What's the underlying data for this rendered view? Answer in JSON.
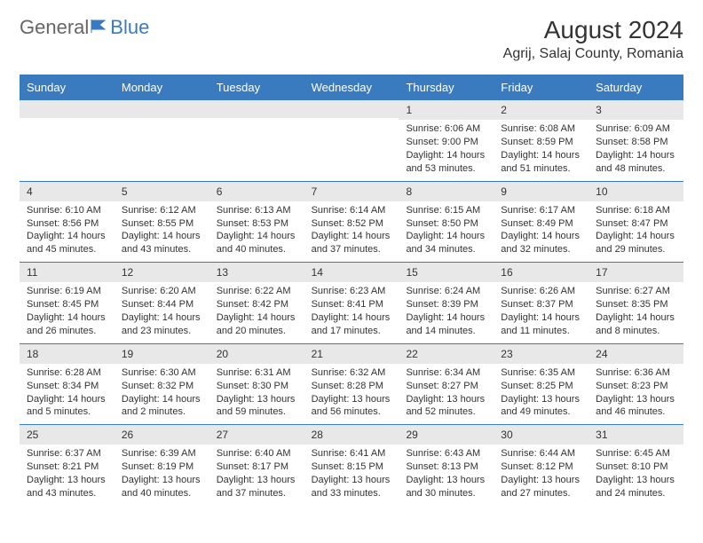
{
  "logo": {
    "text1": "General",
    "text2": "Blue"
  },
  "title": "August 2024",
  "location": "Agrij, Salaj County, Romania",
  "colors": {
    "accent": "#3a7bbf",
    "header_text": "#ffffff",
    "daynum_bg": "#e8e8e8",
    "text": "#333333",
    "background": "#ffffff"
  },
  "days_of_week": [
    "Sunday",
    "Monday",
    "Tuesday",
    "Wednesday",
    "Thursday",
    "Friday",
    "Saturday"
  ],
  "weeks": [
    [
      {
        "n": "",
        "sr": "",
        "ss": "",
        "dl": ""
      },
      {
        "n": "",
        "sr": "",
        "ss": "",
        "dl": ""
      },
      {
        "n": "",
        "sr": "",
        "ss": "",
        "dl": ""
      },
      {
        "n": "",
        "sr": "",
        "ss": "",
        "dl": ""
      },
      {
        "n": "1",
        "sr": "Sunrise: 6:06 AM",
        "ss": "Sunset: 9:00 PM",
        "dl": "Daylight: 14 hours and 53 minutes."
      },
      {
        "n": "2",
        "sr": "Sunrise: 6:08 AM",
        "ss": "Sunset: 8:59 PM",
        "dl": "Daylight: 14 hours and 51 minutes."
      },
      {
        "n": "3",
        "sr": "Sunrise: 6:09 AM",
        "ss": "Sunset: 8:58 PM",
        "dl": "Daylight: 14 hours and 48 minutes."
      }
    ],
    [
      {
        "n": "4",
        "sr": "Sunrise: 6:10 AM",
        "ss": "Sunset: 8:56 PM",
        "dl": "Daylight: 14 hours and 45 minutes."
      },
      {
        "n": "5",
        "sr": "Sunrise: 6:12 AM",
        "ss": "Sunset: 8:55 PM",
        "dl": "Daylight: 14 hours and 43 minutes."
      },
      {
        "n": "6",
        "sr": "Sunrise: 6:13 AM",
        "ss": "Sunset: 8:53 PM",
        "dl": "Daylight: 14 hours and 40 minutes."
      },
      {
        "n": "7",
        "sr": "Sunrise: 6:14 AM",
        "ss": "Sunset: 8:52 PM",
        "dl": "Daylight: 14 hours and 37 minutes."
      },
      {
        "n": "8",
        "sr": "Sunrise: 6:15 AM",
        "ss": "Sunset: 8:50 PM",
        "dl": "Daylight: 14 hours and 34 minutes."
      },
      {
        "n": "9",
        "sr": "Sunrise: 6:17 AM",
        "ss": "Sunset: 8:49 PM",
        "dl": "Daylight: 14 hours and 32 minutes."
      },
      {
        "n": "10",
        "sr": "Sunrise: 6:18 AM",
        "ss": "Sunset: 8:47 PM",
        "dl": "Daylight: 14 hours and 29 minutes."
      }
    ],
    [
      {
        "n": "11",
        "sr": "Sunrise: 6:19 AM",
        "ss": "Sunset: 8:45 PM",
        "dl": "Daylight: 14 hours and 26 minutes."
      },
      {
        "n": "12",
        "sr": "Sunrise: 6:20 AM",
        "ss": "Sunset: 8:44 PM",
        "dl": "Daylight: 14 hours and 23 minutes."
      },
      {
        "n": "13",
        "sr": "Sunrise: 6:22 AM",
        "ss": "Sunset: 8:42 PM",
        "dl": "Daylight: 14 hours and 20 minutes."
      },
      {
        "n": "14",
        "sr": "Sunrise: 6:23 AM",
        "ss": "Sunset: 8:41 PM",
        "dl": "Daylight: 14 hours and 17 minutes."
      },
      {
        "n": "15",
        "sr": "Sunrise: 6:24 AM",
        "ss": "Sunset: 8:39 PM",
        "dl": "Daylight: 14 hours and 14 minutes."
      },
      {
        "n": "16",
        "sr": "Sunrise: 6:26 AM",
        "ss": "Sunset: 8:37 PM",
        "dl": "Daylight: 14 hours and 11 minutes."
      },
      {
        "n": "17",
        "sr": "Sunrise: 6:27 AM",
        "ss": "Sunset: 8:35 PM",
        "dl": "Daylight: 14 hours and 8 minutes."
      }
    ],
    [
      {
        "n": "18",
        "sr": "Sunrise: 6:28 AM",
        "ss": "Sunset: 8:34 PM",
        "dl": "Daylight: 14 hours and 5 minutes."
      },
      {
        "n": "19",
        "sr": "Sunrise: 6:30 AM",
        "ss": "Sunset: 8:32 PM",
        "dl": "Daylight: 14 hours and 2 minutes."
      },
      {
        "n": "20",
        "sr": "Sunrise: 6:31 AM",
        "ss": "Sunset: 8:30 PM",
        "dl": "Daylight: 13 hours and 59 minutes."
      },
      {
        "n": "21",
        "sr": "Sunrise: 6:32 AM",
        "ss": "Sunset: 8:28 PM",
        "dl": "Daylight: 13 hours and 56 minutes."
      },
      {
        "n": "22",
        "sr": "Sunrise: 6:34 AM",
        "ss": "Sunset: 8:27 PM",
        "dl": "Daylight: 13 hours and 52 minutes."
      },
      {
        "n": "23",
        "sr": "Sunrise: 6:35 AM",
        "ss": "Sunset: 8:25 PM",
        "dl": "Daylight: 13 hours and 49 minutes."
      },
      {
        "n": "24",
        "sr": "Sunrise: 6:36 AM",
        "ss": "Sunset: 8:23 PM",
        "dl": "Daylight: 13 hours and 46 minutes."
      }
    ],
    [
      {
        "n": "25",
        "sr": "Sunrise: 6:37 AM",
        "ss": "Sunset: 8:21 PM",
        "dl": "Daylight: 13 hours and 43 minutes."
      },
      {
        "n": "26",
        "sr": "Sunrise: 6:39 AM",
        "ss": "Sunset: 8:19 PM",
        "dl": "Daylight: 13 hours and 40 minutes."
      },
      {
        "n": "27",
        "sr": "Sunrise: 6:40 AM",
        "ss": "Sunset: 8:17 PM",
        "dl": "Daylight: 13 hours and 37 minutes."
      },
      {
        "n": "28",
        "sr": "Sunrise: 6:41 AM",
        "ss": "Sunset: 8:15 PM",
        "dl": "Daylight: 13 hours and 33 minutes."
      },
      {
        "n": "29",
        "sr": "Sunrise: 6:43 AM",
        "ss": "Sunset: 8:13 PM",
        "dl": "Daylight: 13 hours and 30 minutes."
      },
      {
        "n": "30",
        "sr": "Sunrise: 6:44 AM",
        "ss": "Sunset: 8:12 PM",
        "dl": "Daylight: 13 hours and 27 minutes."
      },
      {
        "n": "31",
        "sr": "Sunrise: 6:45 AM",
        "ss": "Sunset: 8:10 PM",
        "dl": "Daylight: 13 hours and 24 minutes."
      }
    ]
  ]
}
